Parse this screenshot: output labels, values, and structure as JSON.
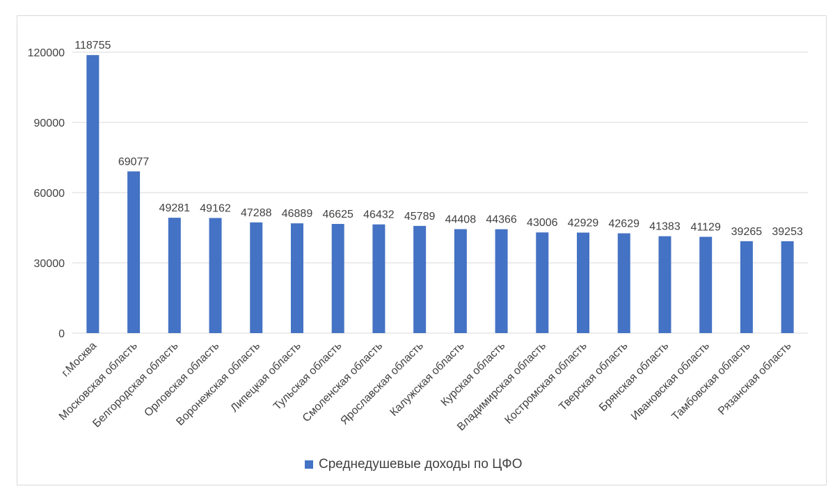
{
  "chart_data": {
    "type": "bar",
    "categories": [
      "г.Москва",
      "Московская область",
      "Белгородская область",
      "Орловская область",
      "Воронежская область",
      "Липецкая область",
      "Тульская область",
      "Смоленская область",
      "Ярославская область",
      "Калужская область",
      "Курская область",
      "Владимирская область",
      "Костромская область",
      "Тверская область",
      "Брянская область",
      "Ивановская область",
      "Тамбовская область",
      "Рязанская область"
    ],
    "series": [
      {
        "name": "Среднедушевые доходы по ЦФО",
        "color": "#4472C4",
        "values": [
          118755,
          69077,
          49281,
          49162,
          47288,
          46889,
          46625,
          46432,
          45789,
          44408,
          44366,
          43006,
          42929,
          42629,
          41383,
          41129,
          39265,
          39253
        ]
      }
    ],
    "ylim": [
      0,
      120000
    ],
    "yticks": [
      "0",
      "30000",
      "60000",
      "90000",
      "120000"
    ],
    "ytick_values": [
      0,
      30000,
      60000,
      90000,
      120000
    ],
    "grid": true,
    "legend_position": "bottom",
    "title": "",
    "xlabel": "",
    "ylabel": ""
  }
}
